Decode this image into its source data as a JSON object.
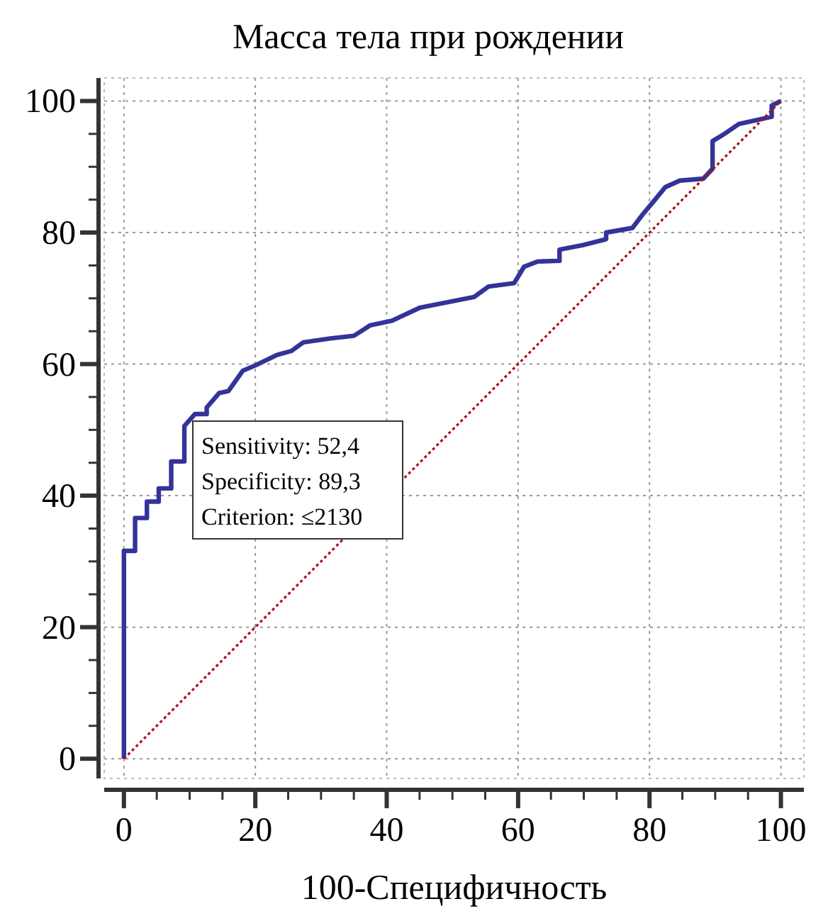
{
  "chart_data": {
    "type": "line",
    "title": "Масса тела при рождении",
    "xlabel": "100-Специфичность",
    "xlim": [
      -3,
      103.5
    ],
    "ylim": [
      -3,
      103.5
    ],
    "xticks": [
      0,
      20,
      40,
      60,
      80,
      100
    ],
    "yticks": [
      0,
      20,
      40,
      60,
      80,
      100
    ],
    "grid": true,
    "series": [
      {
        "color": "#333399",
        "line_style": "solid",
        "x": [
          0,
          0,
          1.7,
          1.7,
          3.5,
          3.5,
          5.3,
          5.3,
          7.2,
          7.2,
          9.2,
          9.2,
          10.8,
          12.6,
          12.6,
          14.5,
          15.9,
          18.1,
          20,
          23.3,
          25.5,
          27.3,
          31.4,
          35,
          37.5,
          40.8,
          45.1,
          53.3,
          55.5,
          59.4,
          60.9,
          63,
          66.3,
          66.3,
          69.9,
          73.4,
          73.4,
          77.4,
          79,
          80.6,
          82.4,
          84.6,
          88.2,
          89.6,
          89.6,
          91.4,
          93.6,
          96.8,
          98.6,
          98.6,
          100
        ],
        "values": [
          0,
          31.6,
          31.6,
          36.6,
          36.6,
          39.1,
          39.1,
          41.1,
          41.1,
          45.2,
          45.2,
          50.6,
          52.4,
          52.4,
          53.4,
          55.6,
          55.9,
          59,
          59.8,
          61.4,
          62,
          63.3,
          63.9,
          64.3,
          65.9,
          66.6,
          68.6,
          70.2,
          71.8,
          72.3,
          74.8,
          75.6,
          75.7,
          77.4,
          78.1,
          79,
          80,
          80.7,
          82.8,
          84.7,
          86.9,
          87.9,
          88.2,
          89.7,
          93.9,
          95,
          96.5,
          97.2,
          97.6,
          99.3,
          100
        ]
      },
      {
        "color": "#aa1111",
        "line_style": "dotted",
        "x": [
          0,
          100
        ],
        "values": [
          0,
          100
        ]
      }
    ],
    "annotations": [
      "Sensitivity: 52,4",
      "Specificity: 89,3",
      "Criterion: ≤2130"
    ]
  }
}
